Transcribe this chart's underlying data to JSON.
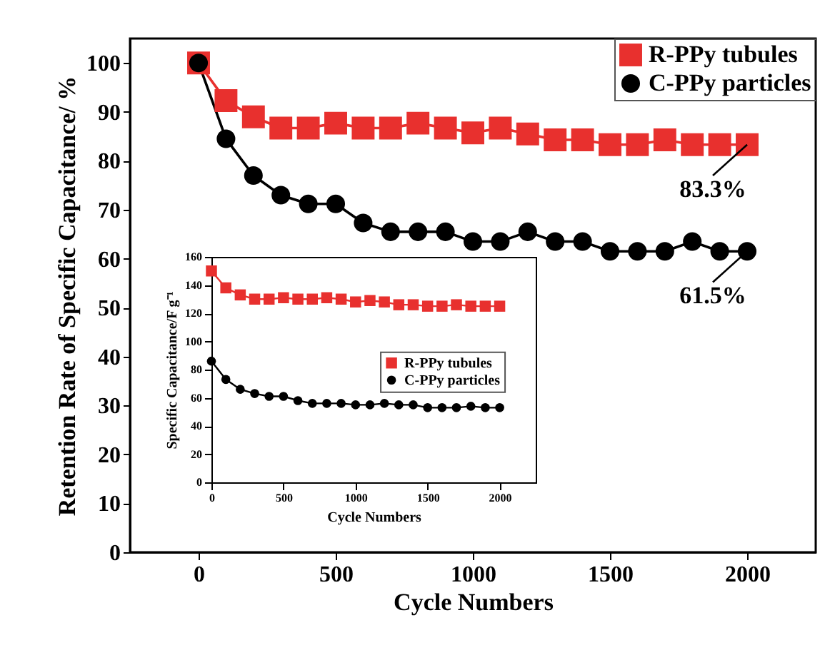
{
  "chart_data": [
    {
      "type": "line",
      "xlabel": "Cycle Numbers",
      "ylabel": "Retention Rate of Specific Capacitance/ %",
      "x": [
        0,
        100,
        200,
        300,
        400,
        500,
        600,
        700,
        800,
        900,
        1000,
        1100,
        1200,
        1300,
        1400,
        1500,
        1600,
        1700,
        1800,
        1900,
        2000
      ],
      "series": [
        {
          "name": "R-PPy tubules",
          "color": "#e8302e",
          "marker": "square",
          "values": [
            100,
            92.3,
            89,
            86.7,
            86.7,
            87.7,
            86.7,
            86.7,
            87.7,
            86.7,
            85.7,
            86.7,
            85.5,
            84.3,
            84.3,
            83.3,
            83.3,
            84.3,
            83.3,
            83.3,
            83.3
          ]
        },
        {
          "name": "C-PPy particles",
          "color": "#000000",
          "marker": "circle",
          "values": [
            100,
            84.5,
            77,
            73,
            71.2,
            71.2,
            67.3,
            65.5,
            65.5,
            65.5,
            63.5,
            63.5,
            65.5,
            63.5,
            63.5,
            61.5,
            61.5,
            61.5,
            63.5,
            61.5,
            61.5
          ]
        }
      ],
      "xlim": [
        -250,
        2250
      ],
      "xticks": [
        0,
        500,
        1000,
        1500,
        2000
      ],
      "ylim": [
        0,
        105
      ],
      "yticks": [
        0,
        10,
        20,
        30,
        40,
        50,
        60,
        70,
        80,
        90,
        100
      ],
      "annotations": [
        {
          "text": "83.3%",
          "x": 2000,
          "y": 83.3
        },
        {
          "text": "61.5%",
          "x": 2000,
          "y": 61.5
        }
      ],
      "legend": "top right",
      "grid": false,
      "line_style": "solid"
    },
    {
      "type": "line",
      "xlabel": "Cycle Numbers",
      "ylabel": "Specific Capacitance/F g⁻¹",
      "x": [
        0,
        100,
        200,
        300,
        400,
        500,
        600,
        700,
        800,
        900,
        1000,
        1100,
        1200,
        1300,
        1400,
        1500,
        1600,
        1700,
        1800,
        1900,
        2000
      ],
      "series": [
        {
          "name": "R-PPy tubules",
          "color": "#e8302e",
          "marker": "square",
          "values": [
            150,
            138,
            133,
            130,
            130,
            131,
            130,
            130,
            131,
            130,
            128,
            129,
            128,
            126,
            126,
            125,
            125,
            126,
            125,
            125,
            125
          ]
        },
        {
          "name": "C-PPy particles",
          "color": "#000000",
          "marker": "circle",
          "values": [
            86,
            73,
            66,
            63,
            61,
            61,
            58,
            56,
            56,
            56,
            55,
            55,
            56,
            55,
            55,
            53,
            53,
            53,
            54,
            53,
            53
          ]
        }
      ],
      "xlim": [
        0,
        2250
      ],
      "xticks": [
        0,
        500,
        1000,
        1500,
        2000
      ],
      "ylim": [
        0,
        160
      ],
      "yticks": [
        0,
        20,
        40,
        60,
        80,
        100,
        120,
        140,
        160
      ],
      "legend": "right",
      "grid": false,
      "line_style": "solid"
    }
  ]
}
